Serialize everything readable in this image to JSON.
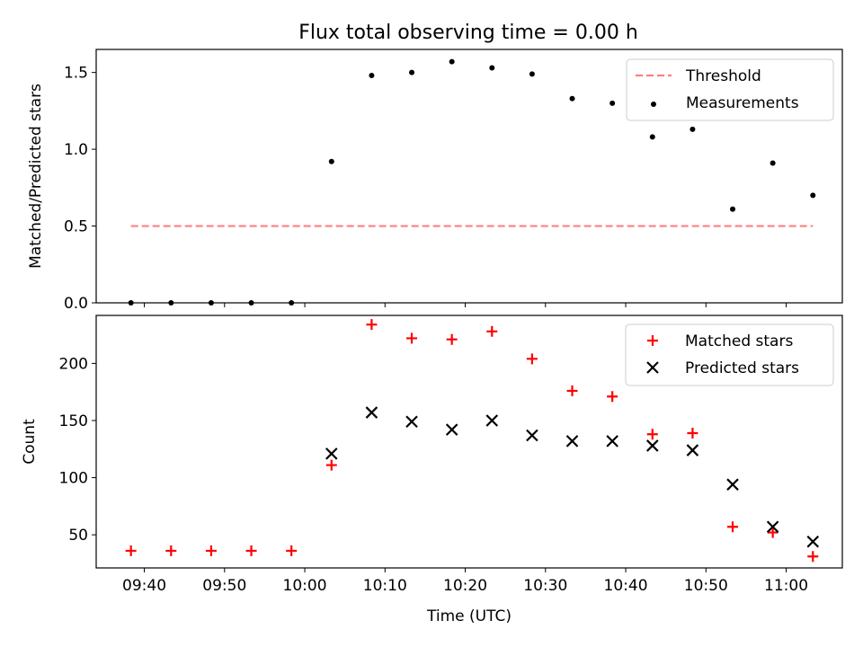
{
  "chart_data": [
    {
      "type": "scatter",
      "title": "Flux total observing time = 0.00 h",
      "xlabel": "",
      "ylabel": "Matched/Predicted stars",
      "x_unit": "time_utc",
      "xlim": [
        "09:34",
        "11:07"
      ],
      "ylim": [
        0,
        1.65
      ],
      "yticks": [
        0.0,
        0.5,
        1.0,
        1.5
      ],
      "ytick_labels": [
        "0.0",
        "0.5",
        "1.0",
        "1.5"
      ],
      "xticks": [
        "09:40",
        "09:50",
        "10:00",
        "10:10",
        "10:20",
        "10:30",
        "10:40",
        "10:50",
        "11:00"
      ],
      "legend_position": "top-right",
      "legend": [
        "Threshold",
        "Measurements"
      ],
      "series": [
        {
          "name": "Threshold",
          "kind": "dashed-line",
          "color": "#ff7f7f",
          "x": [
            "09:38:20",
            "11:03:20"
          ],
          "y": [
            0.5,
            0.5
          ]
        },
        {
          "name": "Measurements",
          "kind": "dot",
          "color": "#000000",
          "x": [
            "09:38:20",
            "09:43:20",
            "09:48:20",
            "09:53:20",
            "09:58:20",
            "10:03:20",
            "10:08:20",
            "10:13:20",
            "10:18:20",
            "10:23:20",
            "10:28:20",
            "10:33:20",
            "10:38:20",
            "10:43:20",
            "10:48:20",
            "10:53:20",
            "10:58:20",
            "11:03:20"
          ],
          "y": [
            0.0,
            0.0,
            0.0,
            0.0,
            0.0,
            0.92,
            1.48,
            1.5,
            1.57,
            1.53,
            1.49,
            1.33,
            1.3,
            1.08,
            1.13,
            0.61,
            0.91,
            0.7
          ]
        }
      ]
    },
    {
      "type": "scatter",
      "title": "",
      "xlabel": "Time (UTC)",
      "ylabel": "Count",
      "x_unit": "time_utc",
      "xlim": [
        "09:34",
        "11:07"
      ],
      "ylim": [
        21,
        242
      ],
      "yticks": [
        50,
        100,
        150,
        200
      ],
      "ytick_labels": [
        "50",
        "100",
        "150",
        "200"
      ],
      "xticks": [
        "09:40",
        "09:50",
        "10:00",
        "10:10",
        "10:20",
        "10:30",
        "10:40",
        "10:50",
        "11:00"
      ],
      "xtick_labels": [
        "09:40",
        "09:50",
        "10:00",
        "10:10",
        "10:20",
        "10:30",
        "10:40",
        "10:50",
        "11:00"
      ],
      "legend_position": "top-right",
      "legend": [
        "Matched stars",
        "Predicted stars"
      ],
      "series": [
        {
          "name": "Matched stars",
          "marker": "plus",
          "color": "#ff0000",
          "x": [
            "09:38:20",
            "09:43:20",
            "09:48:20",
            "09:53:20",
            "09:58:20",
            "10:03:20",
            "10:08:20",
            "10:13:20",
            "10:18:20",
            "10:23:20",
            "10:28:20",
            "10:33:20",
            "10:38:20",
            "10:43:20",
            "10:48:20",
            "10:53:20",
            "10:58:20",
            "11:03:20"
          ],
          "y": [
            36,
            36,
            36,
            36,
            36,
            111,
            234,
            222,
            221,
            228,
            204,
            176,
            171,
            138,
            139,
            57,
            52,
            31
          ]
        },
        {
          "name": "Predicted stars",
          "marker": "x",
          "color": "#000000",
          "x": [
            "10:03:20",
            "10:08:20",
            "10:13:20",
            "10:18:20",
            "10:23:20",
            "10:28:20",
            "10:33:20",
            "10:38:20",
            "10:43:20",
            "10:48:20",
            "10:53:20",
            "10:58:20",
            "11:03:20"
          ],
          "y": [
            121,
            157,
            149,
            142,
            150,
            137,
            132,
            132,
            128,
            124,
            94,
            57,
            44
          ]
        }
      ]
    }
  ]
}
